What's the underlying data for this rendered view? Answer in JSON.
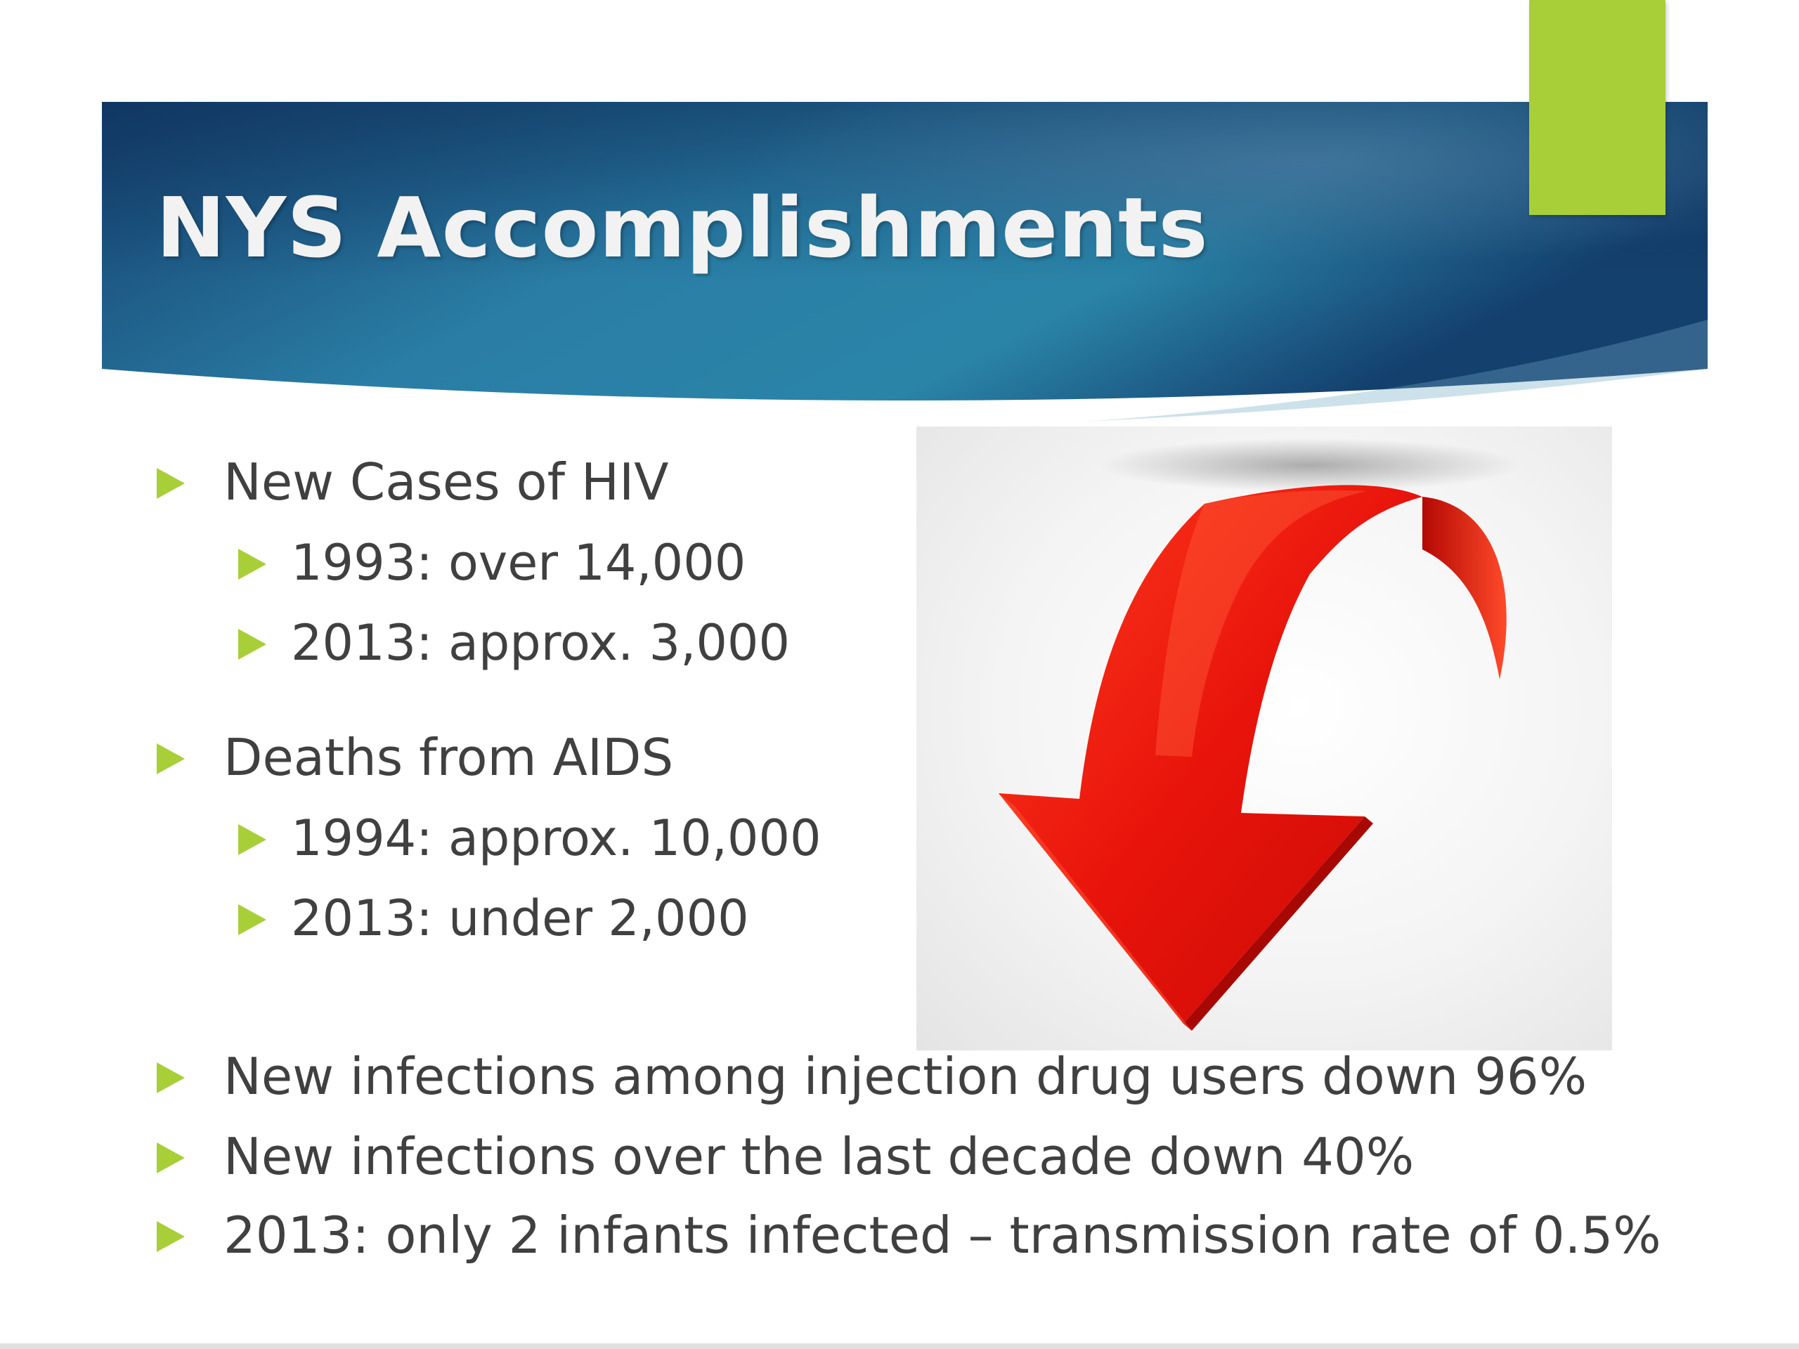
{
  "slide": {
    "title": "NYS Accomplishments",
    "colors": {
      "banner_dark": "#15406e",
      "banner_light": "#2f8fae",
      "accent_green": "#a8cf38",
      "arrow_red": "#e8140b",
      "text": "#404040"
    },
    "bullets": [
      {
        "text": "New Cases of HIV",
        "level": 1
      },
      {
        "text": "1993:  over 14,000",
        "level": 2
      },
      {
        "text": "2013: approx. 3,000",
        "level": 2
      },
      {
        "text": "Deaths from AIDS",
        "level": 1
      },
      {
        "text": "1994: approx. 10,000",
        "level": 2
      },
      {
        "text": "2013: under 2,000",
        "level": 2
      },
      {
        "text": "New infections among injection drug users down 96%",
        "level": 1
      },
      {
        "text": "New infections over the last decade down 40%",
        "level": 1
      },
      {
        "text": "2013: only 2 infants infected – transmission rate of 0.5%",
        "level": 1
      }
    ],
    "picture": {
      "icon": "red-curved-down-arrow-icon"
    },
    "bullet_icon": "triangle-right-icon"
  }
}
